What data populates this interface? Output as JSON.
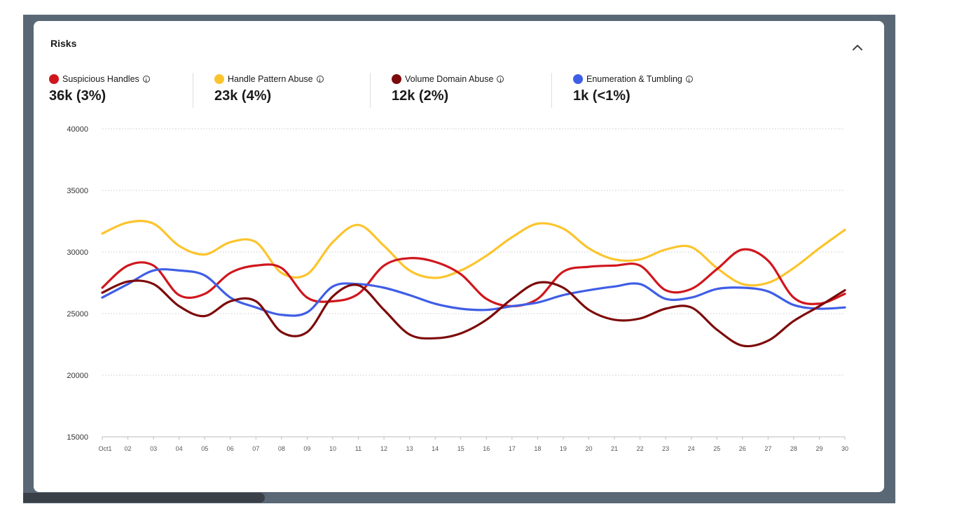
{
  "card": {
    "title": "Risks"
  },
  "icons": {
    "collapse": "chevron-up-icon",
    "info": "info-icon"
  },
  "legend": [
    {
      "name": "Suspicious Handles",
      "value": "36k (3%)",
      "color": "#d0161d"
    },
    {
      "name": "Handle Pattern Abuse",
      "value": "23k (4%)",
      "color": "#fcc42c"
    },
    {
      "name": "Volume Domain Abuse",
      "value": "12k (2%)",
      "color": "#7d0a0a"
    },
    {
      "name": "Enumeration & Tumbling",
      "value": "1k (<1%)",
      "color": "#3f5ee6"
    }
  ],
  "chart_data": {
    "type": "line",
    "title": "",
    "xlabel": "",
    "ylabel": "",
    "ylim": [
      15000,
      40000
    ],
    "yticks": [
      15000,
      20000,
      25000,
      30000,
      35000,
      40000
    ],
    "grid": "horizontal dotted",
    "categories": [
      "Oct1",
      "02",
      "03",
      "04",
      "05",
      "06",
      "07",
      "08",
      "09",
      "10",
      "11",
      "12",
      "13",
      "14",
      "15",
      "16",
      "17",
      "18",
      "19",
      "20",
      "21",
      "22",
      "23",
      "24",
      "25",
      "26",
      "27",
      "28",
      "29",
      "30"
    ],
    "series": [
      {
        "name": "Suspicious Handles",
        "color": "#d0161d",
        "values": [
          27100,
          28900,
          28900,
          26500,
          26600,
          28300,
          28900,
          28700,
          26300,
          26000,
          26600,
          28900,
          29500,
          29200,
          28200,
          26200,
          25600,
          26200,
          28400,
          28800,
          28900,
          28900,
          26900,
          27000,
          28600,
          30200,
          29300,
          26300,
          25800,
          26600
        ]
      },
      {
        "name": "Handle Pattern Abuse",
        "color": "#fcc42c",
        "values": [
          31500,
          32400,
          32300,
          30500,
          29800,
          30800,
          30800,
          28300,
          28200,
          30800,
          32200,
          30500,
          28500,
          27900,
          28500,
          29700,
          31200,
          32300,
          31900,
          30300,
          29400,
          29400,
          30200,
          30400,
          28700,
          27400,
          27500,
          28700,
          30300,
          31800
        ]
      },
      {
        "name": "Volume Domain Abuse",
        "color": "#7d0a0a",
        "values": [
          26700,
          27600,
          27400,
          25600,
          24800,
          26000,
          26000,
          23500,
          23500,
          26400,
          27300,
          25300,
          23300,
          23000,
          23400,
          24500,
          26200,
          27500,
          27100,
          25300,
          24500,
          24600,
          25400,
          25500,
          23700,
          22400,
          22800,
          24400,
          25600,
          26900
        ]
      },
      {
        "name": "Enumeration & Tumbling",
        "color": "#3f5ee6",
        "values": [
          26300,
          27400,
          28500,
          28500,
          28100,
          26300,
          25500,
          24900,
          25100,
          27200,
          27400,
          27100,
          26500,
          25800,
          25400,
          25300,
          25600,
          25900,
          26500,
          26900,
          27200,
          27400,
          26200,
          26300,
          27000,
          27100,
          26800,
          25700,
          25400,
          25500
        ]
      }
    ]
  }
}
